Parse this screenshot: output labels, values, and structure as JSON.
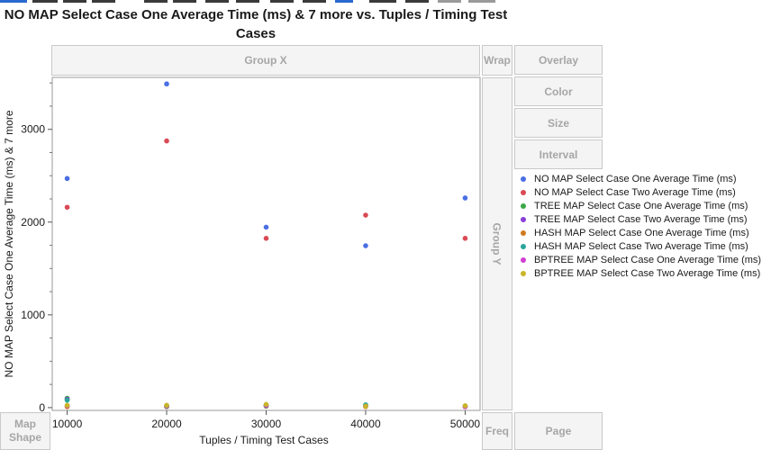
{
  "title": "NO MAP Select Case One Average Time (ms) & 7 more vs. Tuples / Timing Test Cases",
  "zones": {
    "group_x": "Group X",
    "group_y": "Group Y",
    "wrap": "Wrap",
    "overlay": "Overlay",
    "color": "Color",
    "size": "Size",
    "interval": "Interval",
    "map_shape": "Map Shape",
    "freq": "Freq",
    "page": "Page"
  },
  "chart_data": {
    "type": "scatter",
    "title": "NO MAP Select Case One Average Time (ms) & 7 more vs. Tuples / Timing Test Cases",
    "xlabel": "Tuples / Timing Test Cases",
    "ylabel": "NO MAP Select Case One Average Time (ms) & 7 more",
    "x": [
      10000,
      20000,
      30000,
      40000,
      50000
    ],
    "xlim": [
      8500,
      51500
    ],
    "ylim": [
      -30,
      3560
    ],
    "xticks": [
      10000,
      20000,
      30000,
      40000,
      50000
    ],
    "yticks": [
      0,
      1000,
      2000,
      3000
    ],
    "grid": false,
    "legend_position": "right",
    "series": [
      {
        "name": "NO MAP Select Case One Average Time (ms)",
        "color": "#4a6fe3",
        "values": [
          2470,
          3490,
          1945,
          1745,
          2260
        ]
      },
      {
        "name": "NO MAP Select Case Two Average Time (ms)",
        "color": "#d94a55",
        "values": [
          2160,
          2875,
          1825,
          2075,
          1825
        ]
      },
      {
        "name": "TREE MAP Select Case One Average Time (ms)",
        "color": "#3aa845",
        "values": [
          100,
          15,
          25,
          25,
          15
        ]
      },
      {
        "name": "TREE MAP Select Case Two Average Time (ms)",
        "color": "#8a3fd6",
        "values": [
          90,
          10,
          20,
          20,
          10
        ]
      },
      {
        "name": "HASH MAP Select Case One Average Time (ms)",
        "color": "#d07a20",
        "values": [
          10,
          10,
          15,
          10,
          10
        ]
      },
      {
        "name": "HASH MAP Select Case Two Average Time (ms)",
        "color": "#2aa59a",
        "values": [
          80,
          15,
          20,
          30,
          15
        ]
      },
      {
        "name": "BPTREE MAP Select Case One Average Time (ms)",
        "color": "#d23fd0",
        "values": [
          20,
          20,
          25,
          15,
          10
        ]
      },
      {
        "name": "BPTREE MAP Select Case Two Average Time (ms)",
        "color": "#c9b52a",
        "values": [
          25,
          25,
          35,
          15,
          20
        ]
      }
    ]
  }
}
